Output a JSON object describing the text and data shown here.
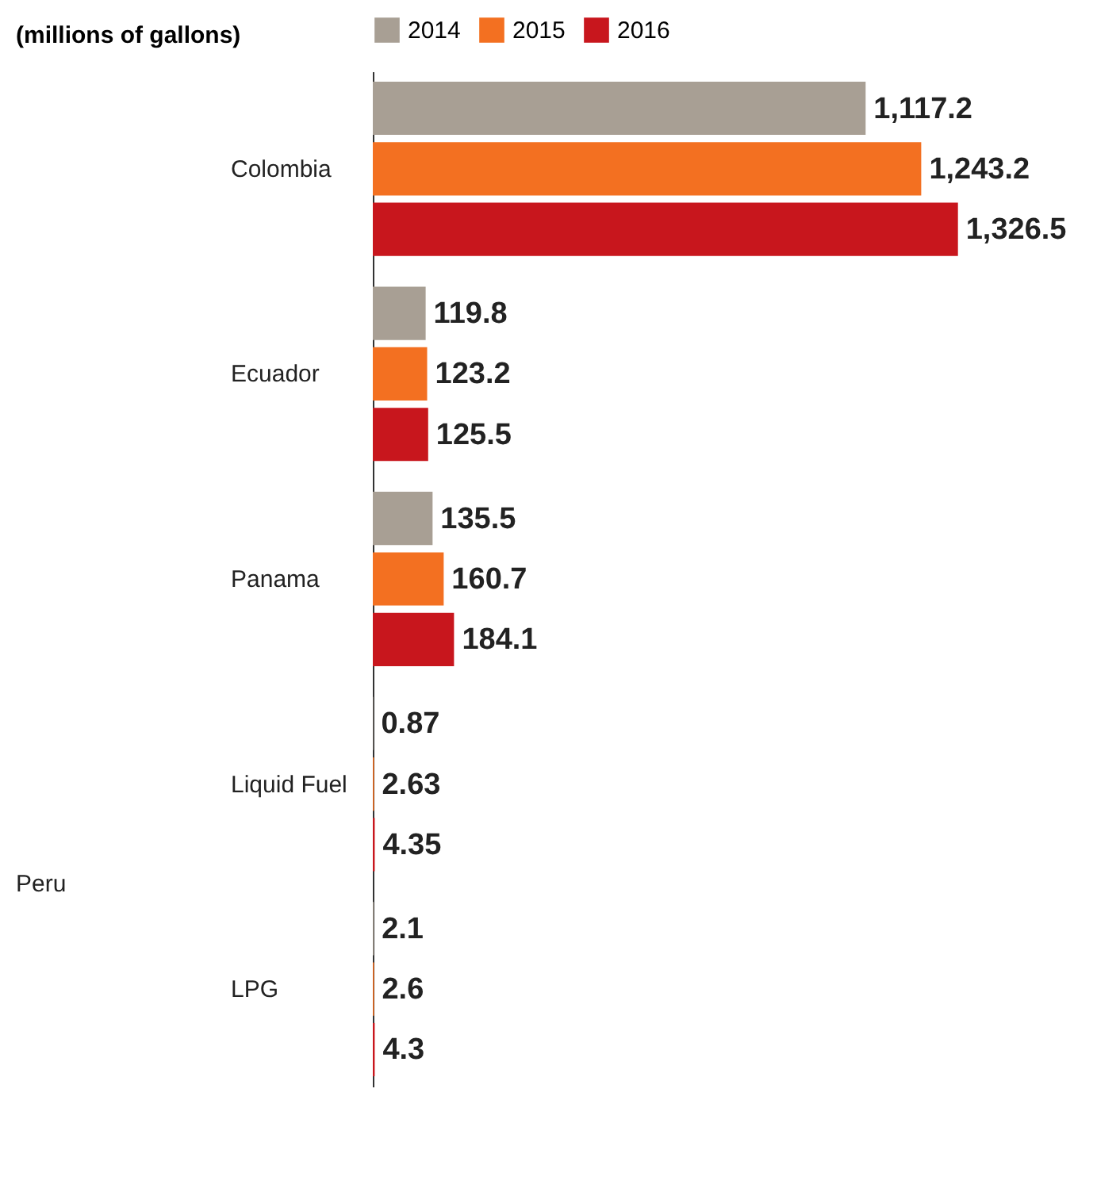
{
  "chart_data": {
    "type": "bar",
    "orientation": "horizontal",
    "title": "(millions of gallons)",
    "categories": [
      "Colombia",
      "Ecuador",
      "Panama",
      "Liquid Fuel",
      "LPG"
    ],
    "series": [
      {
        "name": "2014",
        "color": "#a89f94",
        "values": [
          1117.2,
          119.8,
          135.5,
          0.87,
          2.1
        ],
        "value_labels": [
          "1,117.2",
          "119.8",
          "135.5",
          "0.87",
          "2.1"
        ]
      },
      {
        "name": "2015",
        "color": "#f37021",
        "values": [
          1243.2,
          123.2,
          160.7,
          2.63,
          2.6
        ],
        "value_labels": [
          "1,243.2",
          "123.2",
          "160.7",
          "2.63",
          "2.6"
        ]
      },
      {
        "name": "2016",
        "color": "#c8161d",
        "values": [
          1326.5,
          125.5,
          184.1,
          4.35,
          4.3
        ],
        "value_labels": [
          "1,326.5",
          "125.5",
          "184.1",
          "4.35",
          "4.3"
        ]
      }
    ],
    "annotations": [
      "Peru"
    ],
    "legend": "top",
    "grid": false,
    "tick_labels": "y"
  }
}
